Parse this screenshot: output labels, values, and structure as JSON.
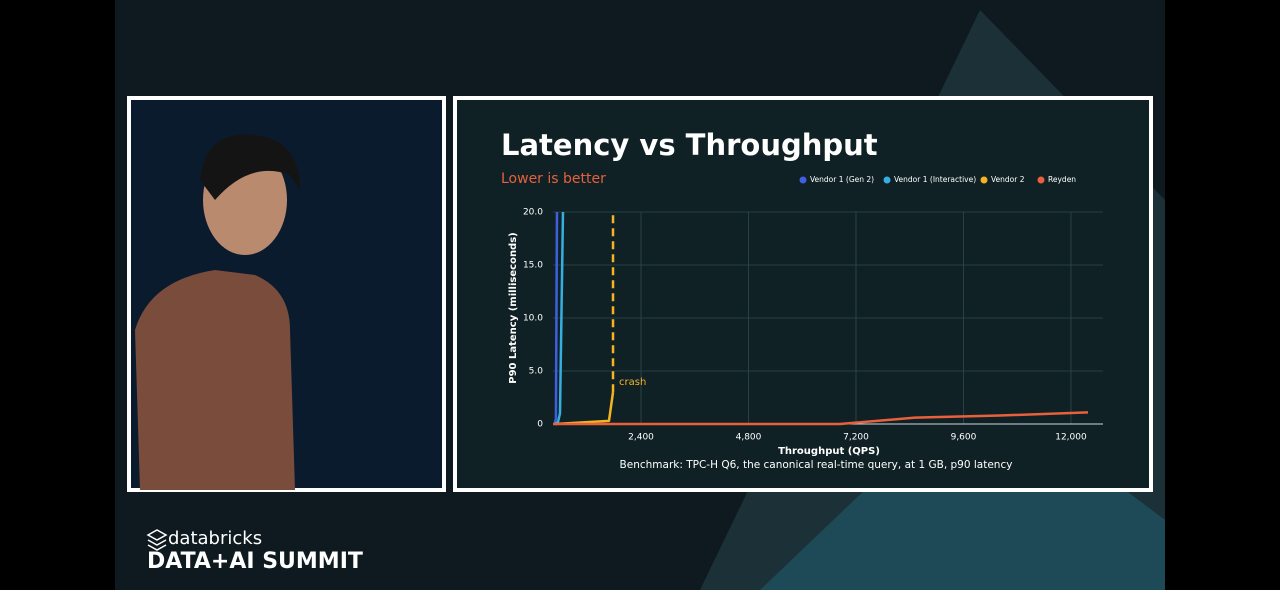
{
  "chart_data": {
    "type": "line",
    "title": "Latency vs Throughput",
    "subtitle": "Lower is better",
    "x_label": "Throughput (QPS)",
    "y_label": "P90 Latency (milliseconds)",
    "caption": "Benchmark: TPC-H Q6, the canonical real-time query, at 1 GB, p90 latency",
    "xlim": [
      435,
      12715
    ],
    "xticks": [
      {
        "value": 2400,
        "label": "2,400"
      },
      {
        "value": 4800,
        "label": "4,800"
      },
      {
        "value": 7200,
        "label": "7,200"
      },
      {
        "value": 9600,
        "label": "9,600"
      },
      {
        "value": 12000,
        "label": "12,000"
      }
    ],
    "ylim": [
      0,
      20
    ],
    "yticks": [
      0,
      {
        "value": 5,
        "label": "5.0"
      },
      {
        "value": 10,
        "label": "10.0"
      },
      {
        "value": 15,
        "label": "15.0"
      },
      {
        "value": 20,
        "label": "20.0"
      }
    ],
    "grid": true,
    "series": [
      {
        "name": "Vendor 1 (Gen 2)",
        "color": "#3f5fe0",
        "x": [
          470,
          500,
          524
        ],
        "values": [
          0,
          0.5,
          20
        ]
      },
      {
        "name": "Vendor 1 (Interactive)",
        "color": "#35aee0",
        "x": [
          480,
          547,
          591,
          658
        ],
        "values": [
          0,
          0.2,
          1,
          20
        ]
      },
      {
        "name": "Vendor 2",
        "color": "#f5b324",
        "x": [
          480,
          1685,
          1775
        ],
        "values": [
          0,
          0.3,
          3
        ]
      },
      {
        "name": "Reyden",
        "color": "#e8603c",
        "x": [
          435,
          6843,
          8518,
          10415,
          12380
        ],
        "values": [
          0,
          0,
          0.6,
          0.8,
          1.1
        ]
      }
    ],
    "annotations": [
      {
        "text": "crash",
        "x": 1775,
        "y_from": 3,
        "y_to": 20,
        "color": "#f5b324"
      }
    ]
  },
  "branding": {
    "company": "databricks",
    "event": "DATA+AI SUMMIT"
  }
}
